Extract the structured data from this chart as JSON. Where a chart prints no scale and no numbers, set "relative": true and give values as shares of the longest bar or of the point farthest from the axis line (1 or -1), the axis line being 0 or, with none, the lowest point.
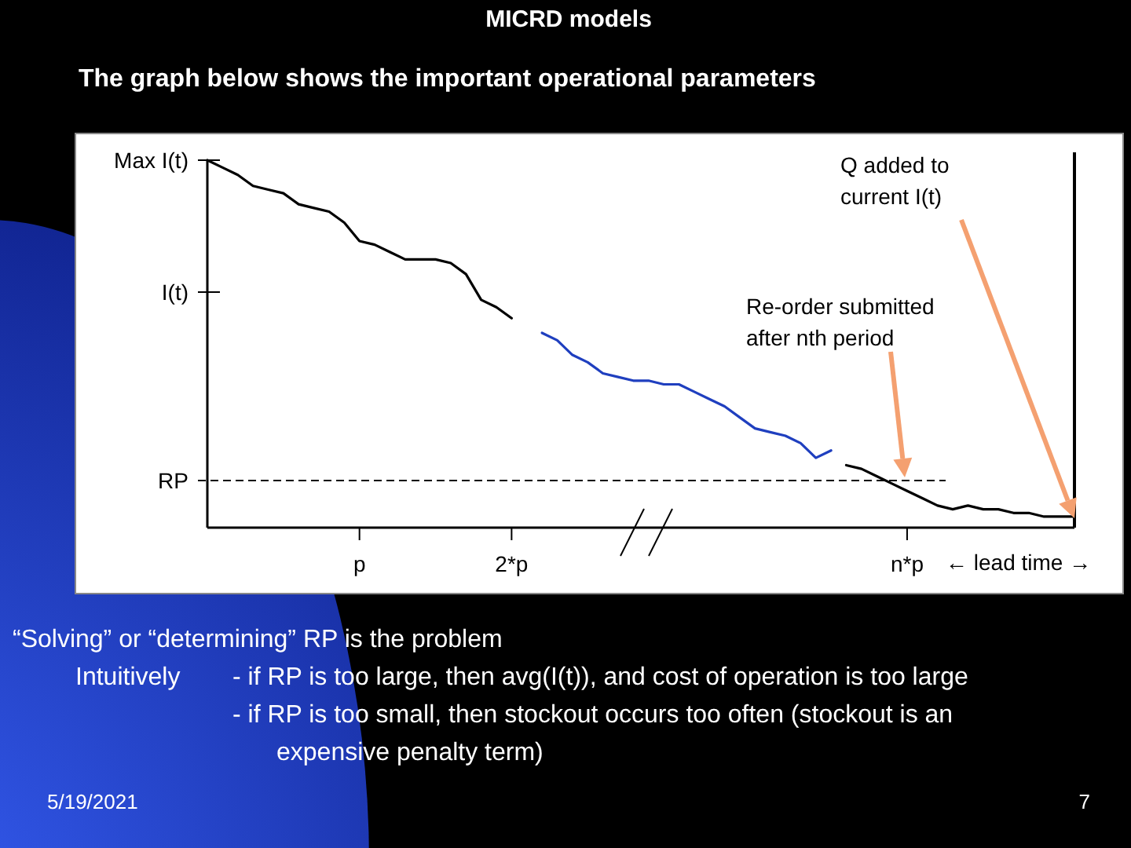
{
  "chart_data": {
    "type": "line",
    "title": "MICRD models",
    "subtitle": "The graph below shows the important operational parameters",
    "relative": true,
    "categories": [
      null,
      null,
      null,
      null,
      null,
      null,
      null,
      null,
      null,
      null,
      "p",
      null,
      null,
      null,
      null,
      null,
      null,
      null,
      null,
      null,
      "2*p",
      null,
      null,
      null,
      null,
      null,
      null,
      null,
      null,
      null,
      null,
      null,
      null,
      null,
      null,
      null,
      null,
      null,
      null,
      null,
      null,
      null,
      null,
      null,
      null,
      null,
      "n*p",
      null,
      null,
      null,
      null,
      null,
      null,
      null,
      null,
      null,
      null,
      null
    ],
    "ref_lines": [
      {
        "axis": "y",
        "value": 0.128,
        "label": "RP",
        "line_style": "dashed",
        "color": "#000000"
      }
    ],
    "series": [
      {
        "color": "#000000",
        "values": [
          1,
          0.98,
          0.96,
          0.93,
          0.92,
          0.91,
          0.88,
          0.87,
          0.86,
          0.83,
          0.78,
          0.77,
          0.75,
          0.73,
          0.73,
          0.73,
          0.72,
          0.69,
          0.62,
          0.6,
          0.57,
          null,
          null,
          null,
          null,
          null,
          null,
          null,
          null,
          null,
          null,
          null,
          null,
          null,
          null,
          null,
          null,
          null,
          null,
          null,
          null,
          null,
          0.17,
          0.16,
          0.14,
          0.12,
          0.1,
          0.08,
          0.06,
          0.05,
          0.06,
          0.05,
          0.05,
          0.04,
          0.04,
          0.03,
          0.03,
          0.03
        ]
      },
      {
        "color": "#1f3fbf",
        "values": [
          null,
          null,
          null,
          null,
          null,
          null,
          null,
          null,
          null,
          null,
          null,
          null,
          null,
          null,
          null,
          null,
          null,
          null,
          null,
          null,
          null,
          null,
          0.53,
          0.51,
          0.47,
          0.45,
          0.42,
          0.41,
          0.4,
          0.4,
          0.39,
          0.39,
          0.37,
          0.35,
          0.33,
          0.3,
          0.27,
          0.26,
          0.25,
          0.23,
          0.19,
          0.21,
          null,
          null,
          null,
          null,
          null,
          null,
          null,
          null,
          null,
          null,
          null,
          null,
          null,
          null,
          null,
          null
        ]
      }
    ],
    "line_style": "solid",
    "annotations": [
      "Max I(t)",
      "I(t)",
      "Q added to\ncurrent I(t)",
      "Re-order submitted\nafter nth period",
      "← lead time →",
      "“Solving” or “determining” RP is the problem",
      "Intuitively",
      "- if RP is too large, then avg(I(t)), and cost of operation is too large",
      "- if RP is too small, then stockout occurs too often (stockout is an\nexpensive penalty term)",
      "5/19/2021",
      "7"
    ]
  }
}
